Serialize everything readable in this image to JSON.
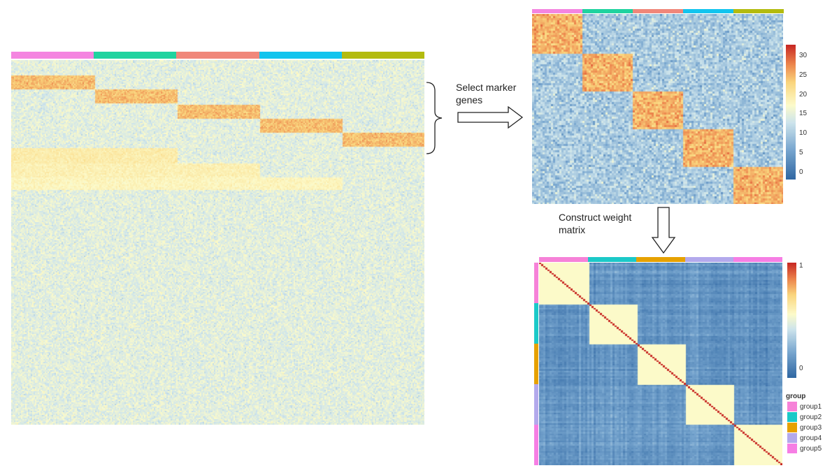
{
  "annotations": {
    "select_markers": "Select marker\ngenes",
    "construct_weight": "Construct weight\nmatrix"
  },
  "colors": {
    "set1": [
      "#f485e0",
      "#1fd39f",
      "#f0877a",
      "#12c4ee",
      "#b3bb0f"
    ],
    "set2": [
      "#f682d8",
      "#1bc9c8",
      "#e6a100",
      "#b3a9ec",
      "#f67ee4"
    ]
  },
  "marker_heatmap": {
    "scale_ticks": [
      "30",
      "25",
      "20",
      "15",
      "10",
      "5",
      "0"
    ]
  },
  "weight_matrix": {
    "scale_ticks": [
      "1",
      "0"
    ],
    "legend_title": "group",
    "legend_items": [
      "group1",
      "group2",
      "group3",
      "group4",
      "group5"
    ]
  }
}
